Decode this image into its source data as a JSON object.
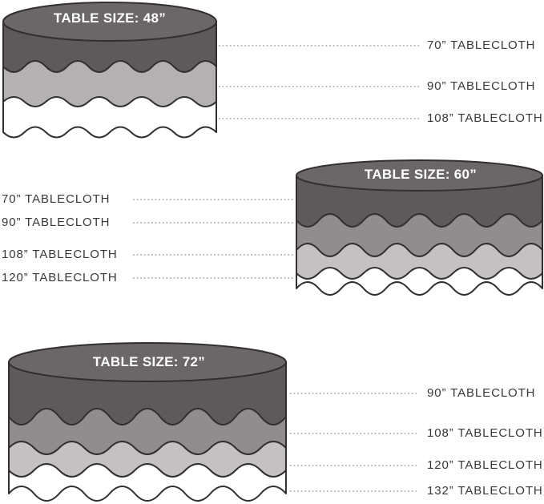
{
  "figure": {
    "background": "#ffffff",
    "colors": {
      "outline": "#332f30",
      "table_top": "#6b6768",
      "leader_line": "#a7a4a5",
      "label_text": "#3b3738",
      "title_text": "#ffffff"
    },
    "tables": [
      {
        "table_size_in": 48,
        "title": "TABLE SIZE: 48”",
        "label_side": "right",
        "layers": [
          {
            "tablecloth_in": 70,
            "label": "70” TABLECLOTH",
            "color": "#5e5a5b"
          },
          {
            "tablecloth_in": 90,
            "label": "90” TABLECLOTH",
            "color": "#b3b1b1"
          },
          {
            "tablecloth_in": 108,
            "label": "108” TABLECLOTH",
            "color": "#ffffff"
          }
        ]
      },
      {
        "table_size_in": 60,
        "title": "TABLE SIZE: 60”",
        "label_side": "left",
        "layers": [
          {
            "tablecloth_in": 70,
            "label": "70” TABLECLOTH",
            "color": "#5e5a5b"
          },
          {
            "tablecloth_in": 90,
            "label": "90” TABLECLOTH",
            "color": "#908d8e"
          },
          {
            "tablecloth_in": 108,
            "label": "108” TABLECLOTH",
            "color": "#c3c1c1"
          },
          {
            "tablecloth_in": 120,
            "label": "120” TABLECLOTH",
            "color": "#ffffff"
          }
        ]
      },
      {
        "table_size_in": 72,
        "title": "TABLE SIZE: 72”",
        "label_side": "right",
        "layers": [
          {
            "tablecloth_in": 90,
            "label": "90” TABLECLOTH",
            "color": "#5e5a5b"
          },
          {
            "tablecloth_in": 108,
            "label": "108” TABLECLOTH",
            "color": "#908d8e"
          },
          {
            "tablecloth_in": 120,
            "label": "120” TABLECLOTH",
            "color": "#c3c1c1"
          },
          {
            "tablecloth_in": 132,
            "label": "132” TABLECLOTH",
            "color": "#ffffff"
          }
        ]
      }
    ]
  }
}
